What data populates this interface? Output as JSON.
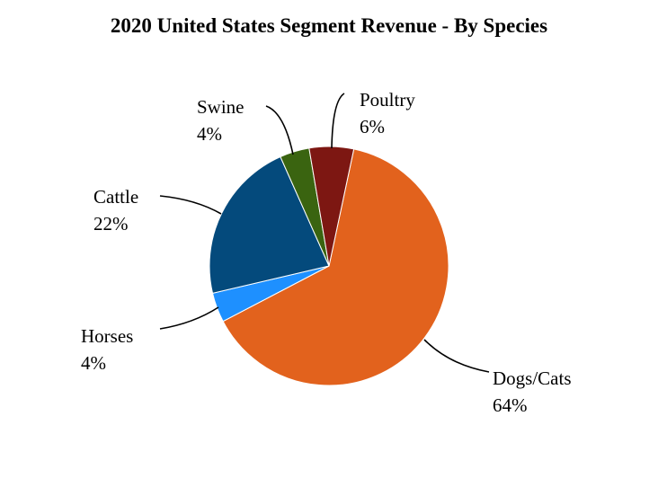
{
  "chart_data": {
    "type": "pie",
    "title": "2020 United States Segment Revenue - By Species",
    "start_angle_deg": 12,
    "slices": [
      {
        "label": "Dogs/Cats",
        "percent_label": "64%",
        "value": 64,
        "color": "#E2621D"
      },
      {
        "label": "Horses",
        "percent_label": "4%",
        "value": 4,
        "color": "#1E90FF"
      },
      {
        "label": "Cattle",
        "percent_label": "22%",
        "value": 22,
        "color": "#044A7C"
      },
      {
        "label": "Swine",
        "percent_label": "4%",
        "value": 4,
        "color": "#3A6410"
      },
      {
        "label": "Poultry",
        "percent_label": "6%",
        "value": 6,
        "color": "#7D1712"
      }
    ]
  }
}
